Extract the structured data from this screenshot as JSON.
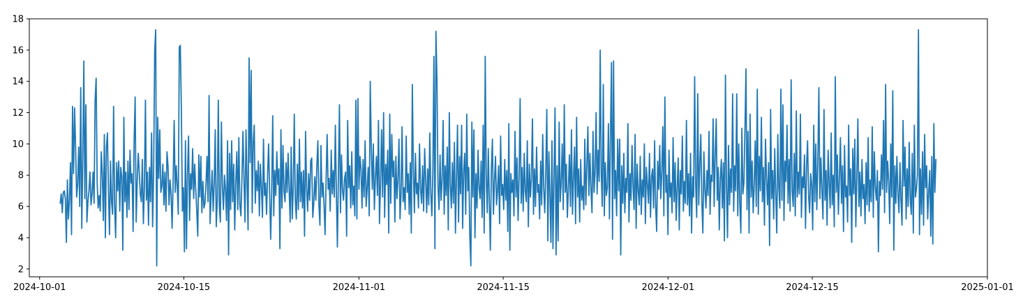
{
  "chart_data": {
    "type": "line",
    "title": "",
    "xlabel": "",
    "ylabel": "",
    "x_start": "2024-10-03",
    "x_end": "2024-12-27",
    "x_step_hours": 1,
    "xlim": [
      "2024-09-30",
      "2025-01-01"
    ],
    "ylim": [
      1.5,
      18
    ],
    "x_tick_labels": [
      "2024-10-01",
      "2024-10-15",
      "2024-11-01",
      "2024-11-15",
      "2024-12-01",
      "2024-12-15",
      "2025-01-01"
    ],
    "y_tick_labels": [
      "2",
      "4",
      "6",
      "8",
      "10",
      "12",
      "14",
      "16",
      "18"
    ],
    "grid": false,
    "legend": "none",
    "series": [
      {
        "color": "#1f77b4",
        "values": [
          6.2,
          6.8,
          5.6,
          6.9,
          7.0,
          6.5,
          3.7,
          7.7,
          5.2,
          6.4,
          8.8,
          4.2,
          12.4,
          8.1,
          12.3,
          9.8,
          6.6,
          7.4,
          9.8,
          6.0,
          13.6,
          4.6,
          9.1,
          15.3,
          6.5,
          12.5,
          5.0,
          6.3,
          7.0,
          8.2,
          6.1,
          6.8,
          8.2,
          6.2,
          12.8,
          14.2,
          7.5,
          5.9,
          6.7,
          5.7,
          9.5,
          8.1,
          5.1,
          10.6,
          4.0,
          9.8,
          10.7,
          7.0,
          4.2,
          8.9,
          6.3,
          5.5,
          12.4,
          6.1,
          4.0,
          8.8,
          7.0,
          8.9,
          5.7,
          8.5,
          7.9,
          3.2,
          11.7,
          6.3,
          8.2,
          5.3,
          8.9,
          5.8,
          9.6,
          7.5,
          8.1,
          4.4,
          10.2,
          13.0,
          5.0,
          7.6,
          9.4,
          8.2,
          6.8,
          6.3,
          9.0,
          4.9,
          7.2,
          12.8,
          6.4,
          8.2,
          4.8,
          8.5,
          6.3,
          10.7,
          4.7,
          8.1,
          15.9,
          17.3,
          2.2,
          11.7,
          7.8,
          10.9,
          6.9,
          7.3,
          8.7,
          6.1,
          8.2,
          5.7,
          9.5,
          8.6,
          6.1,
          7.7,
          6.8,
          4.6,
          7.6,
          11.5,
          6.9,
          8.6,
          7.3,
          5.5,
          16.2,
          16.3,
          12.3,
          5.7,
          7.2,
          3.1,
          10.2,
          3.3,
          8.1,
          10.5,
          5.1,
          8.1,
          7.1,
          9.7,
          6.5,
          8.7,
          7.1,
          5.7,
          4.1,
          9.3,
          6.6,
          9.2,
          5.6,
          7.6,
          5.9,
          6.2,
          7.4,
          9.2,
          6.3,
          13.1,
          4.9,
          6.8,
          8.3,
          5.7,
          7.5,
          10.9,
          4.7,
          6.4,
          12.8,
          6.0,
          5.0,
          11.4,
          7.2,
          5.8,
          8.0,
          7.1,
          5.1,
          10.2,
          2.9,
          9.4,
          5.8,
          10.2,
          6.3,
          8.7,
          4.5,
          7.5,
          9.5,
          5.8,
          10.4,
          6.1,
          5.4,
          7.7,
          10.8,
          7.8,
          5.0,
          10.9,
          7.5,
          4.5,
          15.5,
          8.8,
          14.7,
          5.6,
          10.1,
          11.2,
          6.2,
          8.3,
          7.0,
          8.9,
          5.4,
          8.7,
          7.2,
          5.3,
          10.3,
          6.7,
          7.5,
          5.5,
          8.0,
          10.0,
          6.8,
          3.9,
          6.9,
          11.8,
          5.4,
          8.3,
          6.7,
          9.5,
          7.4,
          8.4,
          3.3,
          10.9,
          5.9,
          9.9,
          7.0,
          6.3,
          8.8,
          6.9,
          9.4,
          7.1,
          5.0,
          9.8,
          5.2,
          7.1,
          11.9,
          6.4,
          5.2,
          8.7,
          5.8,
          10.3,
          6.3,
          8.2,
          5.9,
          8.3,
          4.1,
          10.8,
          7.2,
          5.7,
          8.1,
          6.4,
          8.9,
          9.1,
          5.3,
          6.2,
          7.9,
          6.4,
          8.6,
          10.2,
          6.1,
          4.8,
          9.9,
          6.6,
          7.5,
          6.1,
          4.2,
          7.7,
          10.6,
          7.1,
          7.8,
          5.7,
          9.6,
          6.8,
          8.3,
          6.6,
          11.2,
          6.9,
          3.4,
          8.1,
          12.5,
          5.6,
          9.3,
          7.0,
          6.4,
          7.8,
          8.2,
          4.1,
          11.5,
          7.2,
          8.6,
          5.9,
          9.5,
          6.1,
          7.3,
          5.4,
          12.8,
          5.2,
          12.9,
          7.1,
          9.2,
          8.4,
          5.9,
          9.0,
          6.6,
          10.2,
          6.0,
          7.2,
          8.5,
          5.4,
          14.0,
          9.8,
          7.1,
          10.0,
          5.8,
          7.8,
          9.2,
          6.7,
          11.5,
          4.9,
          7.5,
          10.9,
          6.6,
          12.0,
          5.3,
          8.7,
          7.4,
          9.6,
          4.3,
          11.9,
          6.2,
          10.6,
          7.9,
          8.9,
          5.0,
          9.2,
          6.5,
          7.7,
          10.3,
          5.2,
          6.8,
          11.1,
          6.3,
          7.2,
          5.8,
          10.5,
          6.9,
          8.1,
          5.5,
          8.8,
          4.3,
          13.8,
          8.4,
          5.6,
          9.4,
          6.8,
          7.5,
          5.9,
          10.0,
          7.1,
          6.2,
          8.6,
          5.7,
          9.7,
          7.8,
          5.6,
          8.4,
          6.1,
          10.7,
          6.9,
          5.4,
          8.2,
          15.6,
          3.3,
          17.2,
          14.0,
          7.3,
          5.8,
          9.3,
          6.4,
          7.7,
          11.5,
          5.5,
          8.6,
          6.7,
          9.8,
          4.5,
          12.0,
          7.3,
          5.9,
          8.8,
          6.2,
          10.1,
          4.3,
          7.8,
          11.2,
          5.0,
          9.2,
          6.8,
          11.2,
          4.6,
          8.3,
          9.4,
          5.5,
          11.9,
          7.0,
          8.5,
          4.1,
          2.2,
          11.4,
          6.6,
          10.9,
          4.0,
          8.1,
          5.9,
          9.6,
          7.2,
          6.5,
          8.9,
          5.3,
          11.2,
          4.3,
          15.6,
          7.8,
          5.6,
          9.7,
          6.3,
          3.2,
          8.4,
          10.3,
          5.5,
          7.6,
          9.2,
          6.1,
          7.0,
          8.6,
          4.9,
          10.5,
          6.7,
          7.4,
          5.8,
          9.0,
          6.4,
          8.3,
          4.4,
          11.3,
          3.2,
          8.1,
          6.9,
          7.7,
          5.4,
          10.8,
          6.6,
          9.1,
          5.1,
          7.9,
          12.9,
          6.2,
          8.5,
          5.7,
          9.4,
          7.0,
          6.3,
          10.2,
          4.7,
          8.7,
          6.6,
          7.8,
          11.6,
          5.5,
          8.4,
          6.0,
          9.8,
          6.9,
          7.4,
          5.2,
          8.9,
          6.1,
          10.6,
          7.2,
          5.6,
          8.2,
          12.2,
          3.8,
          9.5,
          6.8,
          3.7,
          10.2,
          3.3,
          7.9,
          12.3,
          2.9,
          8.6,
          3.8,
          11.4,
          6.3,
          7.5,
          10.0,
          5.8,
          12.5,
          6.9,
          8.7,
          5.3,
          7.1,
          9.3,
          6.0,
          10.9,
          5.5,
          7.8,
          9.8,
          4.9,
          11.7,
          6.6,
          8.4,
          5.0,
          9.0,
          6.4,
          7.3,
          5.8,
          10.3,
          6.1,
          8.6,
          11.1,
          6.7,
          9.4,
          7.1,
          5.6,
          10.8,
          6.9,
          8.2,
          12.0,
          6.8,
          9.6,
          7.6,
          16.0,
          8.2,
          6.0,
          13.8,
          5.4,
          8.8,
          6.7,
          7.2,
          11.3,
          5.2,
          10.6,
          15.2,
          3.9,
          15.3,
          6.5,
          8.3,
          5.4,
          10.3,
          7.0,
          10.3,
          2.9,
          8.6,
          6.2,
          9.4,
          5.6,
          7.8,
          6.9,
          11.3,
          5.0,
          8.1,
          6.4,
          9.9,
          7.3,
          5.8,
          10.6,
          4.6,
          8.7,
          7.0,
          6.1,
          9.2,
          5.5,
          7.7,
          6.6,
          10.0,
          4.9,
          8.5,
          7.4,
          6.2,
          9.4,
          5.3,
          7.9,
          8.4,
          5.9,
          10.2,
          6.0,
          4.4,
          8.9,
          7.1,
          9.9,
          6.5,
          8.2,
          11.1,
          5.4,
          13.0,
          6.9,
          8.0,
          4.2,
          9.6,
          6.6,
          7.5,
          5.6,
          10.4,
          6.3,
          8.8,
          5.1,
          7.2,
          9.1,
          4.5,
          8.3,
          6.8,
          10.5,
          5.7,
          7.6,
          6.2,
          11.5,
          6.1,
          8.1,
          5.4,
          9.4,
          4.3,
          7.9,
          6.6,
          14.3,
          7.4,
          5.3,
          13.2,
          6.1,
          8.7,
          10.6,
          6.3,
          4.3,
          9.5,
          7.1,
          5.9,
          8.3,
          6.7,
          10.8,
          5.5,
          8.0,
          7.6,
          11.6,
          6.0,
          9.3,
          11.6,
          6.4,
          8.5,
          4.5,
          7.8,
          9.0,
          5.9,
          8.8,
          3.8,
          14.4,
          7.3,
          4.0,
          9.9,
          6.1,
          8.4,
          6.9,
          13.2,
          5.7,
          8.6,
          7.0,
          13.2,
          5.4,
          10.0,
          6.2,
          4.3,
          11.0,
          6.8,
          7.5,
          10.9,
          14.8,
          5.8,
          10.8,
          4.3,
          11.9,
          6.6,
          8.9,
          5.6,
          7.4,
          10.2,
          6.0,
          13.5,
          5.5,
          9.2,
          7.0,
          11.7,
          6.3,
          8.5,
          4.8,
          10.3,
          7.8,
          6.1,
          8.8,
          3.5,
          12.2,
          6.5,
          8.3,
          5.2,
          9.7,
          6.8,
          4.3,
          10.6,
          7.2,
          5.9,
          13.5,
          6.4,
          12.5,
          5.1,
          8.9,
          7.6,
          11.2,
          6.2,
          9.0,
          5.7,
          14.1,
          7.0,
          6.0,
          9.4,
          5.4,
          12.1,
          6.6,
          8.2,
          6.8,
          11.9,
          5.3,
          7.9,
          7.2,
          9.3,
          4.6,
          8.6,
          10.2,
          6.7,
          5.6,
          8.1,
          7.4,
          4.5,
          11.2,
          6.3,
          10.0,
          5.8,
          8.8,
          13.6,
          6.5,
          9.1,
          7.0,
          5.2,
          12.2,
          6.4,
          8.3,
          4.8,
          9.6,
          7.5,
          5.9,
          10.7,
          6.1,
          8.0,
          4.7,
          14.3,
          6.9,
          9.3,
          5.5,
          7.8,
          10.4,
          6.2,
          8.6,
          4.4,
          9.9,
          6.6,
          7.3,
          5.0,
          11.2,
          6.7,
          8.4,
          3.7,
          9.7,
          6.8,
          10.3,
          4.7,
          7.9,
          11.6,
          6.0,
          8.2,
          5.4,
          9.0,
          6.5,
          7.4,
          4.9,
          8.8,
          6.1,
          10.4,
          5.7,
          7.7,
          6.3,
          11.1,
          5.3,
          9.5,
          7.2,
          6.4,
          8.3,
          3.1,
          7.6,
          6.7,
          9.3,
          7.1,
          11.5,
          5.6,
          13.8,
          6.9,
          8.9,
          7.6,
          4.9,
          10.0,
          6.6,
          13.4,
          3.2,
          8.6,
          6.2,
          9.2,
          6.8,
          5.6,
          8.8,
          6.4,
          4.8,
          11.5,
          7.3,
          9.8,
          5.2,
          8.4,
          6.0,
          10.1,
          6.5,
          5.5,
          9.4,
          4.3,
          11.2,
          6.6,
          7.1,
          8.0,
          17.3,
          4.2,
          8.4,
          5.5,
          9.5,
          4.8,
          10.6,
          7.2,
          8.6,
          5.2,
          6.9,
          8.3,
          4.1,
          9.2,
          3.6,
          11.3,
          6.9,
          9.0
        ]
      }
    ]
  }
}
